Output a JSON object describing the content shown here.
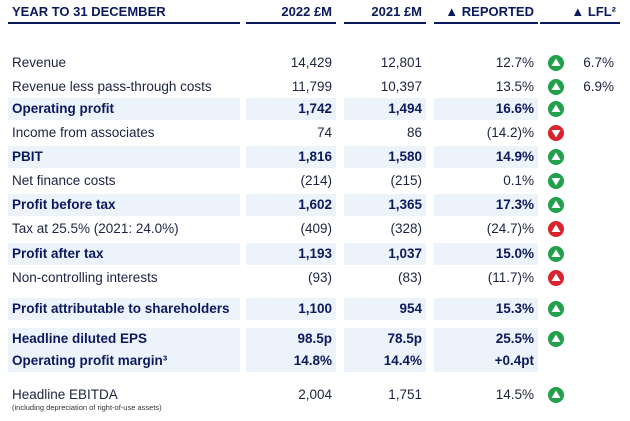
{
  "header": {
    "label": "YEAR TO 31 DECEMBER",
    "y2022": "2022 £M",
    "y2021": "2021 £M",
    "reported": "▲ REPORTED",
    "lfl": "▲ LFL²"
  },
  "rows": [
    {
      "label": "Revenue",
      "y2022": "14,429",
      "y2021": "12,801",
      "reported": "12.7%",
      "lfl": "6.7%"
    },
    {
      "label": "Revenue less pass-through costs",
      "y2022": "11,799",
      "y2021": "10,397",
      "reported": "13.5%",
      "lfl": "6.9%"
    },
    {
      "label": "Operating profit",
      "y2022": "1,742",
      "y2021": "1,494",
      "reported": "16.6%"
    },
    {
      "label": "Income from associates",
      "y2022": "74",
      "y2021": "86",
      "reported": "(14.2)%"
    },
    {
      "label": "PBIT",
      "y2022": "1,816",
      "y2021": "1,580",
      "reported": "14.9%"
    },
    {
      "label": "Net finance costs",
      "y2022": "(214)",
      "y2021": "(215)",
      "reported": "0.1%"
    },
    {
      "label": "Profit before tax",
      "y2022": "1,602",
      "y2021": "1,365",
      "reported": "17.3%"
    },
    {
      "label": "Tax at 25.5% (2021: 24.0%)",
      "y2022": "(409)",
      "y2021": "(328)",
      "reported": "(24.7)%"
    },
    {
      "label": "Profit after tax",
      "y2022": "1,193",
      "y2021": "1,037",
      "reported": "15.0%"
    },
    {
      "label": "Non-controlling interests",
      "y2022": "(93)",
      "y2021": "(83)",
      "reported": "(11.7)%"
    },
    {
      "label": "Profit attributable to shareholders",
      "y2022": "1,100",
      "y2021": "954",
      "reported": "15.3%"
    },
    {
      "label": "Headline diluted EPS",
      "y2022": "98.5p",
      "y2021": "78.5p",
      "reported": "25.5%"
    },
    {
      "label": "Operating profit margin³",
      "y2022": "14.8%",
      "y2021": "14.4%",
      "reported": "+0.4pt"
    },
    {
      "label": "Headline EBITDA",
      "note": "(including depreciation of right-of-use assets)",
      "y2022": "2,004",
      "y2021": "1,751",
      "reported": "14.5%"
    }
  ]
}
